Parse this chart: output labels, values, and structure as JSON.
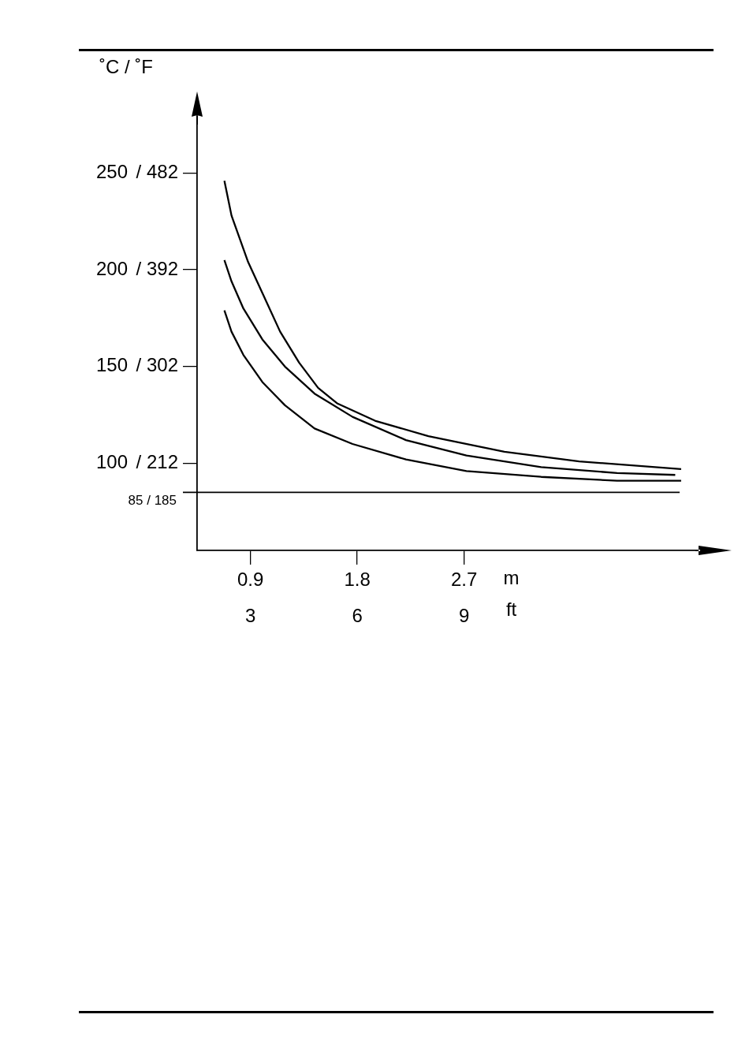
{
  "chart_data": {
    "type": "line",
    "ylabel": "˚C / ˚F",
    "xlabel": "m",
    "x2label": "ft",
    "xlim": [
      0.45,
      4.65
    ],
    "xticks": [
      0.9,
      1.8,
      2.7
    ],
    "x2lim": [
      1.5,
      15.5
    ],
    "x2ticks": [
      3,
      6,
      9
    ],
    "ylim": [
      55,
      275
    ],
    "yticks": [
      100,
      150,
      200,
      250
    ],
    "y2lim": [
      131,
      527
    ],
    "y2ticks": [
      {
        "value": 212,
        "label": "/ 212"
      },
      {
        "value": 302,
        "label": "/ 302"
      },
      {
        "value": 392,
        "label": "/ 392"
      },
      {
        "value": 482,
        "label": "/ 482"
      }
    ],
    "series": [
      {
        "color": "#000000",
        "x": [
          0.68,
          0.74,
          0.88,
          1.0,
          1.15,
          1.31,
          1.47,
          1.63,
          1.95,
          2.4,
          3.04,
          3.67,
          4.53
        ],
        "values": [
          246,
          228,
          204,
          188,
          168,
          152,
          139,
          131,
          122,
          114,
          106,
          101,
          97
        ]
      },
      {
        "color": "#000000",
        "x": [
          0.68,
          0.74,
          0.84,
          1.0,
          1.19,
          1.44,
          1.76,
          2.21,
          2.72,
          3.35,
          3.99,
          4.48
        ],
        "values": [
          205,
          194,
          180,
          164,
          150,
          136,
          124,
          112,
          104,
          98,
          95,
          94
        ]
      },
      {
        "color": "#000000",
        "x": [
          0.68,
          0.74,
          0.84,
          1.0,
          1.19,
          1.44,
          1.76,
          2.21,
          2.72,
          3.35,
          3.99,
          4.53
        ],
        "values": [
          179,
          168,
          156,
          142,
          130,
          118,
          110,
          102,
          96,
          93,
          91,
          91
        ]
      }
    ],
    "ref_lines": [
      {
        "axis": "y",
        "value": 85,
        "label": "85 / 185",
        "color": "#000000"
      }
    ],
    "marker": "none"
  }
}
